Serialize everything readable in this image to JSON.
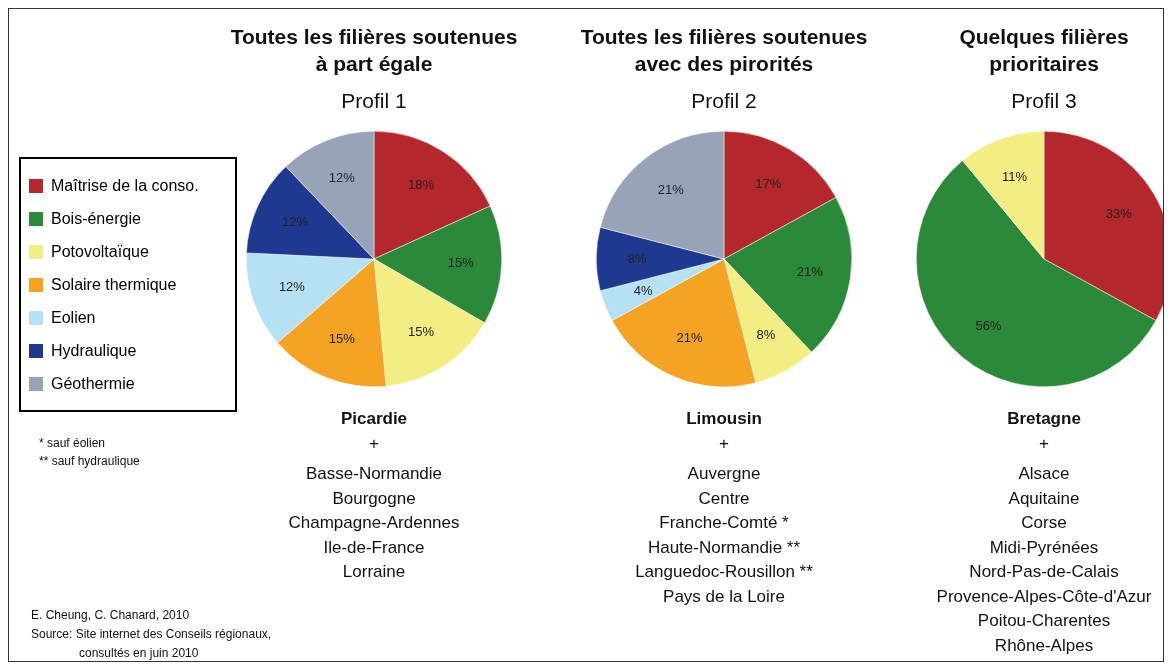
{
  "chart_data": [
    {
      "type": "pie",
      "title": "Toutes les filières soutenues à part égale",
      "subtitle": "Profil 1",
      "legend": "left",
      "categories": [
        "Maîtrise de la conso.",
        "Bois-énergie",
        "Potovoltaïque",
        "Solaire thermique",
        "Eolien",
        "Hydraulique",
        "Géothermie"
      ],
      "values": [
        18,
        15,
        15,
        15,
        12,
        12,
        12
      ],
      "value_labels": [
        "18%",
        "15%",
        "15%",
        "15%",
        "12%",
        "12%",
        "12%"
      ],
      "colors": [
        "#b3272d",
        "#2b8a3a",
        "#f3ee84",
        "#f4a323",
        "#b5e1f3",
        "#1f3990",
        "#97a4b8"
      ],
      "annotations": [
        "Picardie",
        "+",
        "Basse-Normandie",
        "Bourgogne",
        "Champagne-Ardennes",
        "Ile-de-France",
        "Lorraine"
      ]
    },
    {
      "type": "pie",
      "title": "Toutes les filières soutenues avec des pirorités",
      "subtitle": "Profil 2",
      "values": [
        17,
        21,
        8,
        21,
        4,
        8,
        21
      ],
      "value_labels": [
        "17%",
        "21%",
        "8%",
        "21%",
        "4%",
        "8%",
        "21%"
      ],
      "colors": [
        "#b3272d",
        "#2b8a3a",
        "#f3ee84",
        "#f4a323",
        "#b5e1f3",
        "#1f3990",
        "#97a4b8"
      ],
      "annotations": [
        "Limousin",
        "+",
        "Auvergne",
        "Centre",
        "Franche-Comté *",
        "Haute-Normandie **",
        "Languedoc-Rousillon **",
        "Pays de la Loire"
      ]
    },
    {
      "type": "pie",
      "title": "Quelques filières prioritaires",
      "subtitle": "Profil 3",
      "values": [
        33,
        56,
        11
      ],
      "value_labels": [
        "33%",
        "56%",
        "11%"
      ],
      "colors": [
        "#b3272d",
        "#2b8a3a",
        "#f3ee84"
      ],
      "annotations": [
        "Bretagne",
        "+",
        "Alsace",
        "Aquitaine",
        "Corse",
        "Midi-Pyrénées",
        "Nord-Pas-de-Calais",
        "Provence-Alpes-Côte-d'Azur",
        "Poitou-Charentes",
        "Rhône-Alpes"
      ]
    },
    {
      "type": "other",
      "annotations": [
        "* sauf éolien",
        "** sauf hydraulique",
        "E. Cheung, C. Chanard, 2010",
        "Source: Site internet des Conseils régionaux, consultés en juin 2010"
      ]
    }
  ]
}
